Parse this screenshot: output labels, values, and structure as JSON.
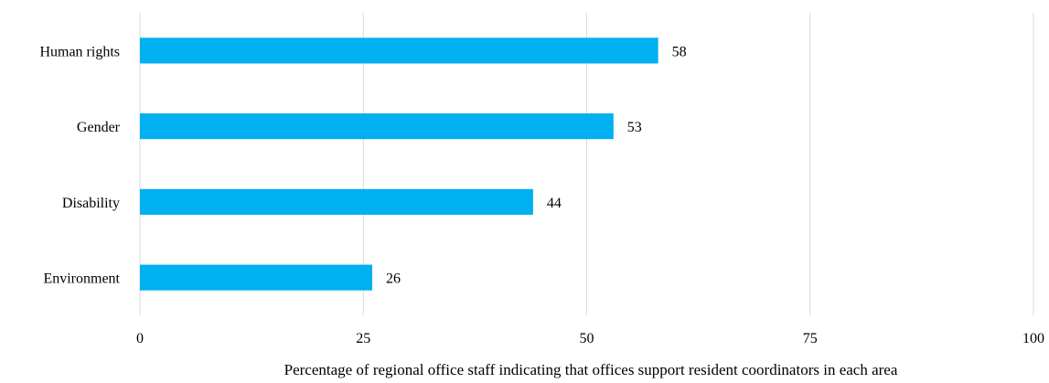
{
  "chart_data": {
    "type": "bar",
    "orientation": "horizontal",
    "categories": [
      "Human rights",
      "Gender",
      "Disability",
      "Environment"
    ],
    "values": [
      58,
      53,
      44,
      26
    ],
    "xlabel": "Percentage of regional office staff indicating that offices support resident coordinators in each area",
    "ylabel": "",
    "xlim": [
      0,
      100
    ],
    "xticks": [
      0,
      25,
      50,
      75,
      100
    ],
    "grid": "vertical",
    "legend": "none",
    "data_labels": true,
    "bar_color": "#00b0f0",
    "grid_color": "#d9d9d9"
  }
}
